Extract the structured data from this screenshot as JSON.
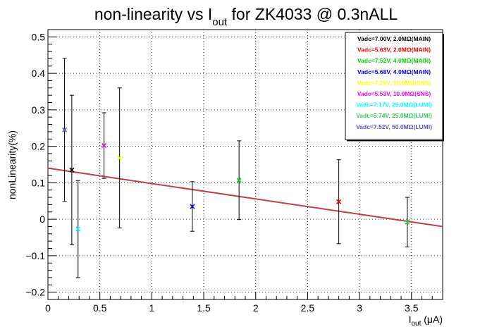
{
  "chart_data": {
    "type": "scatter",
    "title": {
      "prefix": "non-linearity vs I",
      "subscript": "out",
      "suffix": " for ZK4033 @ 0.3nALL"
    },
    "xlabel": {
      "main": "I",
      "subscript": "out",
      "rest": " (μA)"
    },
    "ylabel": "nonLinearity(%)",
    "xlim": [
      0,
      3.8
    ],
    "ylim": [
      -0.22,
      0.52
    ],
    "xticks": [
      0,
      0.5,
      1,
      1.5,
      2,
      2.5,
      3,
      3.5
    ],
    "xtick_labels": [
      "0",
      "0.5",
      "1",
      "1.5",
      "2",
      "2.5",
      "3",
      "3.5"
    ],
    "yticks": [
      -0.2,
      -0.1,
      0,
      0.1,
      0.2,
      0.3,
      0.4,
      0.5
    ],
    "ytick_labels": [
      "−0.2",
      "−0.1",
      "0",
      "0.1",
      "0.2",
      "0.3",
      "0.4",
      "0.5"
    ],
    "grid": true,
    "legend_position": "top-right",
    "series": [
      {
        "name": "Vadc=7.00V, 2.0MΩ(MAIN)",
        "color": "#000000",
        "x": 0.23,
        "y": 0.135,
        "err": 0.205
      },
      {
        "name": "Vadc=5.63V, 2.0MΩ(MAIN)",
        "color": "#ff0000",
        "x": 2.8,
        "y": 0.048,
        "err": 0.115
      },
      {
        "name": "Vadc=7.52V, 4.0MΩ(MAIN)",
        "color": "#00dd00",
        "x": 1.84,
        "y": 0.107,
        "err": 0.108
      },
      {
        "name": "Vadc=5.68V, 4.0MΩ(MAIN)",
        "color": "#0000ff",
        "x": 1.39,
        "y": 0.035,
        "err": 0.068
      },
      {
        "name": "Vadc=7.29V, 10.0MΩ(SNS)",
        "color": "#ffff00",
        "x": 0.69,
        "y": 0.168,
        "err": 0.192
      },
      {
        "name": "Vadc=5.53V, 10.0MΩ(SNS)",
        "color": "#ff00ff",
        "x": 0.54,
        "y": 0.202,
        "err": 0.09
      },
      {
        "name": "Vadc=7.17V, 25.0MΩ(LUMI)",
        "color": "#00ffff",
        "x": 0.29,
        "y": -0.027,
        "err": 0.133
      },
      {
        "name": "Vadc=5.74V, 25.0MΩ(LUMI)",
        "color": "#33cc55",
        "x": 3.46,
        "y": -0.008,
        "err": 0.068
      },
      {
        "name": "Vadc=7.52V, 50.0MΩ(LUMI)",
        "color": "#5555cc",
        "x": 0.16,
        "y": 0.245,
        "err": 0.196
      }
    ],
    "fit": {
      "color": "#c04040",
      "x": [
        0,
        3.8
      ],
      "y": [
        0.14,
        -0.02
      ]
    }
  }
}
